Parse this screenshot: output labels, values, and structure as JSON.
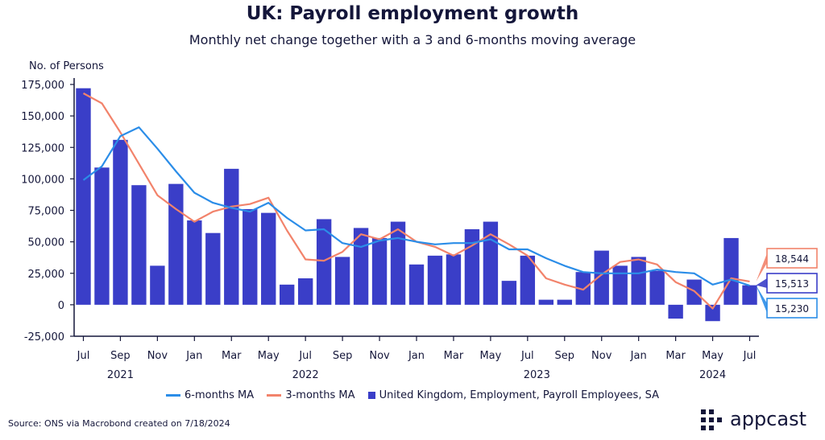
{
  "title": "UK: Payroll employment growth",
  "subtitle": "Monthly net change together with a 3 and 6-months moving average",
  "source": "Source: ONS via Macrobond created on 7/18/2024",
  "logo_text": "appcast",
  "colors": {
    "bars": "#3a3ec8",
    "ma6": "#2b8de8",
    "ma3": "#f2836b",
    "axis": "#14163a"
  },
  "chart_data": {
    "type": "bar",
    "ylabel": "No. of Persons",
    "ylim": [
      -25000,
      175000
    ],
    "yticks": [
      -25000,
      0,
      25000,
      50000,
      75000,
      100000,
      125000,
      150000,
      175000
    ],
    "ytick_labels": [
      "-25,000",
      "0",
      "25,000",
      "50,000",
      "75,000",
      "100,000",
      "125,000",
      "150,000",
      "175,000"
    ],
    "x_month_ticks": [
      {
        "idx": 0,
        "label": "Jul"
      },
      {
        "idx": 2,
        "label": "Sep"
      },
      {
        "idx": 4,
        "label": "Nov"
      },
      {
        "idx": 6,
        "label": "Jan"
      },
      {
        "idx": 8,
        "label": "Mar"
      },
      {
        "idx": 10,
        "label": "May"
      },
      {
        "idx": 12,
        "label": "Jul"
      },
      {
        "idx": 14,
        "label": "Sep"
      },
      {
        "idx": 16,
        "label": "Nov"
      },
      {
        "idx": 18,
        "label": "Jan"
      },
      {
        "idx": 20,
        "label": "Mar"
      },
      {
        "idx": 22,
        "label": "May"
      },
      {
        "idx": 24,
        "label": "Jul"
      },
      {
        "idx": 26,
        "label": "Sep"
      },
      {
        "idx": 28,
        "label": "Nov"
      },
      {
        "idx": 30,
        "label": "Jan"
      },
      {
        "idx": 32,
        "label": "Mar"
      },
      {
        "idx": 34,
        "label": "May"
      },
      {
        "idx": 36,
        "label": "Jul"
      }
    ],
    "x_year_labels": [
      {
        "idx": 2,
        "label": "2021"
      },
      {
        "idx": 12,
        "label": "2022"
      },
      {
        "idx": 24.5,
        "label": "2023"
      },
      {
        "idx": 34,
        "label": "2024"
      }
    ],
    "categories": [
      "2021-06",
      "2021-07",
      "2021-08",
      "2021-09",
      "2021-10",
      "2021-11",
      "2021-12",
      "2022-01",
      "2022-02",
      "2022-03",
      "2022-04",
      "2022-05",
      "2022-06",
      "2022-07",
      "2022-08",
      "2022-09",
      "2022-10",
      "2022-11",
      "2022-12",
      "2023-01",
      "2023-02",
      "2023-03",
      "2023-04",
      "2023-05",
      "2023-06",
      "2023-07",
      "2023-08",
      "2023-09",
      "2023-10",
      "2023-11",
      "2023-12",
      "2024-01",
      "2024-02",
      "2024-03",
      "2024-04",
      "2024-05",
      "2024-06"
    ],
    "series": [
      {
        "name": "United Kingdom, Employment, Payroll Employees, SA",
        "type": "bar",
        "values": [
          172000,
          109000,
          131000,
          95000,
          31000,
          96000,
          67000,
          57000,
          108000,
          76000,
          73000,
          16000,
          21000,
          68000,
          38000,
          61000,
          53000,
          66000,
          32000,
          39000,
          40000,
          60000,
          66000,
          19000,
          39000,
          4000,
          4000,
          26000,
          43000,
          31000,
          38000,
          27000,
          -11000,
          20000,
          -13000,
          53000,
          15513
        ]
      },
      {
        "name": "6-months MA",
        "type": "line",
        "values": [
          99000,
          110000,
          134000,
          141000,
          124000,
          106000,
          89000,
          81000,
          77000,
          74000,
          81000,
          69000,
          59000,
          60000,
          49000,
          46000,
          51000,
          53000,
          50000,
          48000,
          49000,
          49000,
          52000,
          44000,
          44000,
          37000,
          31000,
          26000,
          25000,
          25000,
          25000,
          28000,
          26000,
          25000,
          16000,
          20000,
          15230
        ]
      },
      {
        "name": "3-months MA",
        "type": "line",
        "values": [
          168000,
          160000,
          137000,
          112000,
          87000,
          76000,
          66000,
          74000,
          78000,
          80000,
          85000,
          59000,
          36000,
          35000,
          42000,
          56000,
          52000,
          60000,
          50000,
          46000,
          39000,
          47000,
          56000,
          48000,
          39000,
          21000,
          16000,
          12000,
          24000,
          34000,
          36000,
          32000,
          18000,
          11000,
          -3000,
          21000,
          18544
        ]
      }
    ],
    "end_labels": [
      {
        "series": "3-months MA",
        "text": "18,544"
      },
      {
        "series": "United Kingdom, Employment, Payroll Employees, SA",
        "text": "15,513"
      },
      {
        "series": "6-months MA",
        "text": "15,230"
      }
    ],
    "legend": [
      {
        "label": "6-months MA",
        "kind": "line",
        "series": "6-months MA"
      },
      {
        "label": "3-months MA",
        "kind": "line",
        "series": "3-months MA"
      },
      {
        "label": "United Kingdom, Employment, Payroll Employees, SA",
        "kind": "square",
        "series": "United Kingdom, Employment, Payroll Employees, SA"
      }
    ],
    "legend_position": "bottom",
    "grid": false
  }
}
